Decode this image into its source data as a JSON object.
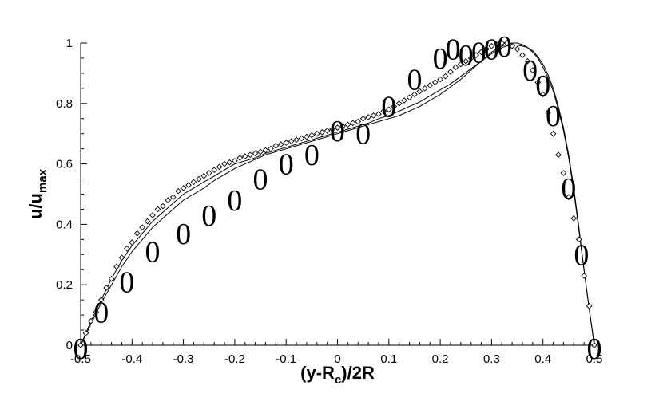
{
  "chart_data": {
    "type": "scatter",
    "title": "",
    "xlabel": {
      "base": "(y-R",
      "sub": "c",
      "tail": ")/2R"
    },
    "ylabel": {
      "base": "u/u",
      "sub": "max"
    },
    "xlim": [
      -0.5,
      0.5
    ],
    "ylim": [
      0,
      1
    ],
    "xticks": [
      "-0.5",
      "-0.4",
      "-0.3",
      "-0.2",
      "-0.1",
      "0",
      "0.1",
      "0.2",
      "0.3",
      "0.4",
      "0.5"
    ],
    "yticks": [
      "0",
      "0.2",
      "0.4",
      "0.6",
      "0.8",
      "1"
    ],
    "grid": false,
    "series": [
      {
        "style": "open-circle-markers",
        "x": [
          -0.5,
          -0.46,
          -0.41,
          -0.36,
          -0.3,
          -0.25,
          -0.2,
          -0.15,
          -0.1,
          -0.05,
          0.0,
          0.05,
          0.1,
          0.15,
          0.2,
          0.225,
          0.25,
          0.275,
          0.3,
          0.325,
          0.375,
          0.4,
          0.42,
          0.45,
          0.475,
          0.5
        ],
        "y": [
          -0.01,
          0.11,
          0.21,
          0.31,
          0.37,
          0.43,
          0.48,
          0.55,
          0.6,
          0.63,
          0.71,
          0.7,
          0.79,
          0.88,
          0.95,
          0.98,
          0.96,
          0.97,
          0.98,
          0.99,
          0.91,
          0.86,
          0.76,
          0.52,
          0.3,
          -0.01
        ]
      },
      {
        "style": "diamond-markers",
        "x": [
          -0.5,
          -0.49,
          -0.48,
          -0.47,
          -0.46,
          -0.45,
          -0.44,
          -0.43,
          -0.42,
          -0.41,
          -0.4,
          -0.39,
          -0.38,
          -0.37,
          -0.36,
          -0.35,
          -0.34,
          -0.33,
          -0.32,
          -0.31,
          -0.3,
          -0.29,
          -0.28,
          -0.27,
          -0.26,
          -0.25,
          -0.24,
          -0.23,
          -0.22,
          -0.21,
          -0.2,
          -0.19,
          -0.18,
          -0.17,
          -0.16,
          -0.15,
          -0.14,
          -0.13,
          -0.12,
          -0.11,
          -0.1,
          -0.09,
          -0.08,
          -0.07,
          -0.06,
          -0.05,
          -0.04,
          -0.03,
          -0.02,
          -0.01,
          0.0,
          0.01,
          0.02,
          0.03,
          0.04,
          0.05,
          0.06,
          0.07,
          0.08,
          0.09,
          0.1,
          0.11,
          0.12,
          0.13,
          0.14,
          0.15,
          0.16,
          0.17,
          0.18,
          0.19,
          0.2,
          0.21,
          0.22,
          0.23,
          0.24,
          0.25,
          0.26,
          0.27,
          0.28,
          0.29,
          0.3,
          0.31,
          0.32,
          0.33,
          0.34,
          0.35,
          0.36,
          0.37,
          0.38,
          0.39,
          0.4,
          0.41,
          0.42,
          0.43,
          0.44,
          0.45,
          0.46,
          0.47,
          0.48,
          0.49,
          0.5
        ],
        "y": [
          0.0,
          0.04,
          0.08,
          0.11,
          0.15,
          0.19,
          0.22,
          0.26,
          0.29,
          0.32,
          0.34,
          0.37,
          0.39,
          0.41,
          0.43,
          0.45,
          0.46,
          0.48,
          0.49,
          0.51,
          0.52,
          0.53,
          0.54,
          0.55,
          0.56,
          0.57,
          0.58,
          0.59,
          0.6,
          0.605,
          0.61,
          0.62,
          0.625,
          0.63,
          0.635,
          0.64,
          0.645,
          0.65,
          0.66,
          0.665,
          0.67,
          0.675,
          0.68,
          0.685,
          0.69,
          0.695,
          0.7,
          0.705,
          0.71,
          0.715,
          0.72,
          0.725,
          0.73,
          0.735,
          0.74,
          0.75,
          0.755,
          0.76,
          0.765,
          0.775,
          0.78,
          0.79,
          0.8,
          0.81,
          0.82,
          0.83,
          0.84,
          0.85,
          0.86,
          0.87,
          0.88,
          0.89,
          0.905,
          0.92,
          0.93,
          0.94,
          0.95,
          0.96,
          0.97,
          0.98,
          0.99,
          0.995,
          1.0,
          1.0,
          0.99,
          0.98,
          0.96,
          0.94,
          0.91,
          0.87,
          0.83,
          0.77,
          0.7,
          0.63,
          0.57,
          0.49,
          0.42,
          0.35,
          0.23,
          0.13,
          0.0
        ]
      },
      {
        "style": "solid-line",
        "x": [
          -0.5,
          -0.48,
          -0.46,
          -0.44,
          -0.42,
          -0.4,
          -0.38,
          -0.36,
          -0.34,
          -0.32,
          -0.3,
          -0.28,
          -0.26,
          -0.24,
          -0.22,
          -0.2,
          -0.18,
          -0.16,
          -0.14,
          -0.12,
          -0.1,
          -0.08,
          -0.06,
          -0.04,
          -0.02,
          0.0,
          0.02,
          0.04,
          0.06,
          0.08,
          0.1,
          0.12,
          0.14,
          0.16,
          0.18,
          0.2,
          0.22,
          0.24,
          0.26,
          0.28,
          0.3,
          0.32,
          0.34,
          0.36,
          0.37,
          0.38,
          0.39,
          0.4,
          0.41,
          0.42,
          0.43,
          0.44,
          0.45,
          0.46,
          0.47,
          0.48,
          0.49,
          0.5
        ],
        "y": [
          0.0,
          0.08,
          0.15,
          0.22,
          0.28,
          0.33,
          0.37,
          0.41,
          0.44,
          0.47,
          0.5,
          0.52,
          0.54,
          0.56,
          0.58,
          0.6,
          0.61,
          0.62,
          0.635,
          0.645,
          0.655,
          0.665,
          0.675,
          0.685,
          0.695,
          0.705,
          0.715,
          0.725,
          0.735,
          0.75,
          0.76,
          0.775,
          0.79,
          0.805,
          0.825,
          0.845,
          0.865,
          0.89,
          0.915,
          0.94,
          0.965,
          0.985,
          0.995,
          0.99,
          0.985,
          0.975,
          0.955,
          0.93,
          0.895,
          0.85,
          0.79,
          0.72,
          0.63,
          0.52,
          0.39,
          0.25,
          0.12,
          0.0
        ]
      },
      {
        "style": "solid-line",
        "x": [
          -0.5,
          -0.48,
          -0.46,
          -0.44,
          -0.42,
          -0.4,
          -0.38,
          -0.36,
          -0.34,
          -0.32,
          -0.3,
          -0.28,
          -0.26,
          -0.24,
          -0.22,
          -0.2,
          -0.18,
          -0.16,
          -0.14,
          -0.12,
          -0.1,
          -0.08,
          -0.06,
          -0.04,
          -0.02,
          0.0,
          0.02,
          0.04,
          0.06,
          0.08,
          0.1,
          0.12,
          0.14,
          0.16,
          0.18,
          0.2,
          0.22,
          0.24,
          0.26,
          0.28,
          0.3,
          0.32,
          0.34,
          0.35,
          0.36,
          0.37,
          0.38,
          0.39,
          0.4,
          0.41,
          0.42,
          0.43,
          0.44,
          0.45,
          0.46,
          0.47,
          0.48,
          0.49,
          0.5
        ],
        "y": [
          0.0,
          0.07,
          0.14,
          0.2,
          0.26,
          0.31,
          0.35,
          0.39,
          0.42,
          0.45,
          0.48,
          0.5,
          0.52,
          0.545,
          0.565,
          0.585,
          0.6,
          0.615,
          0.63,
          0.64,
          0.65,
          0.66,
          0.67,
          0.68,
          0.69,
          0.7,
          0.71,
          0.72,
          0.73,
          0.74,
          0.75,
          0.76,
          0.775,
          0.79,
          0.81,
          0.83,
          0.855,
          0.88,
          0.91,
          0.94,
          0.97,
          0.99,
          1.0,
          1.0,
          0.995,
          0.985,
          0.97,
          0.95,
          0.92,
          0.885,
          0.84,
          0.78,
          0.71,
          0.62,
          0.51,
          0.38,
          0.25,
          0.12,
          0.0
        ]
      }
    ]
  }
}
